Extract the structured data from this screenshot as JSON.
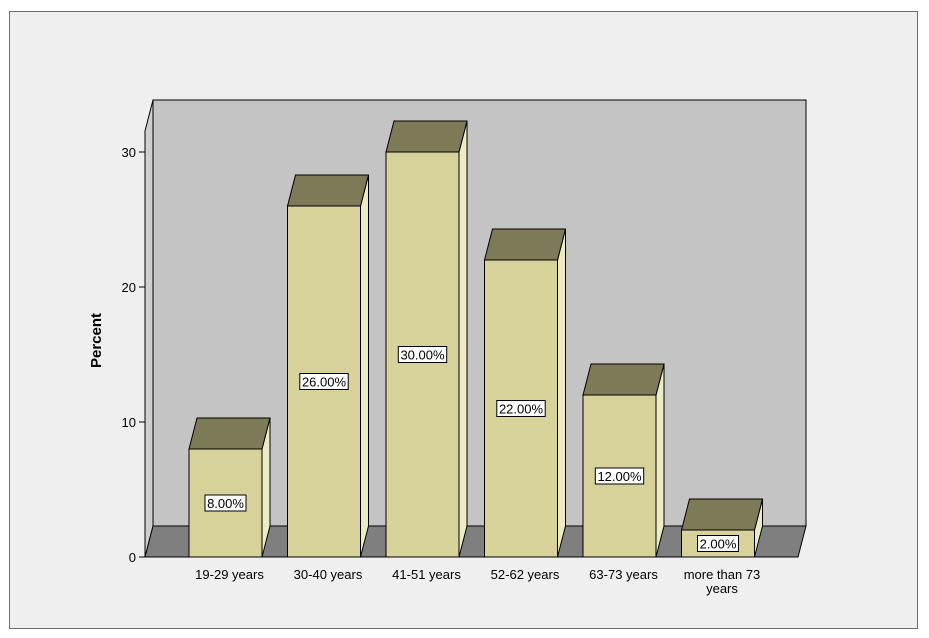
{
  "chart_data": {
    "type": "bar",
    "style": "3d",
    "categories": [
      [
        "19-29 years"
      ],
      [
        "30-40 years"
      ],
      [
        "41-51 years"
      ],
      [
        "52-62 years"
      ],
      [
        "63-73 years"
      ],
      [
        "more than 73",
        "years"
      ]
    ],
    "values": [
      8,
      26,
      30,
      22,
      12,
      2
    ],
    "data_labels": [
      "8.00%",
      "26.00%",
      "30.00%",
      "22.00%",
      "12.00%",
      "2.00%"
    ],
    "ylabel": "Percent",
    "ylim": [
      0,
      30
    ],
    "yticks": [
      0,
      10,
      20,
      30
    ],
    "colors": {
      "bar_front": "#d6d29a",
      "bar_top": "#7d7a57",
      "bar_side": "#ecebc6",
      "back_wall": "#c4c4c4",
      "floor": "#7f7f7f",
      "frame_bg": "#efefef"
    }
  }
}
